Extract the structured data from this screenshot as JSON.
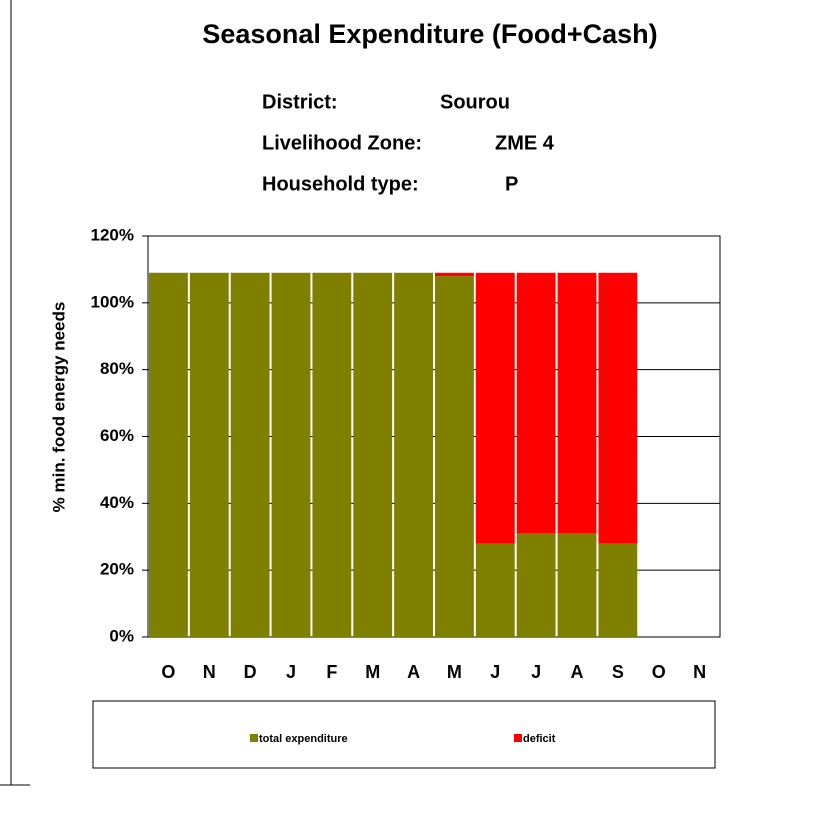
{
  "chart_data": {
    "type": "stacked_bar",
    "title": "Seasonal Expenditure (Food+Cash)",
    "info": [
      {
        "label": "District:",
        "value": "Sourou"
      },
      {
        "label": "Livelihood Zone:",
        "value": "ZME 4"
      },
      {
        "label": "Household type:",
        "value": "P"
      }
    ],
    "y_label": "% min. food energy needs",
    "categories": [
      "O",
      "N",
      "D",
      "J",
      "F",
      "M",
      "A",
      "M",
      "J",
      "J",
      "A",
      "S",
      "O",
      "N"
    ],
    "series": [
      {
        "name": "total expenditure",
        "color": "#808000",
        "values": [
          109,
          109,
          109,
          109,
          109,
          109,
          109,
          108,
          28,
          31,
          31,
          28,
          0,
          0
        ]
      },
      {
        "name": "deficit",
        "color": "#ff0000",
        "values": [
          0,
          0,
          0,
          0,
          0,
          0,
          0,
          1,
          81,
          78,
          78,
          81,
          0,
          0
        ]
      }
    ],
    "ylim": [
      0,
      120
    ],
    "yticks": [
      {
        "value": 0,
        "label": "0%"
      },
      {
        "value": 20,
        "label": "20%"
      },
      {
        "value": 40,
        "label": "40%"
      },
      {
        "value": 60,
        "label": "60%"
      },
      {
        "value": 80,
        "label": "80%"
      },
      {
        "value": 100,
        "label": "100%"
      },
      {
        "value": 120,
        "label": "120%"
      }
    ],
    "grid": true,
    "legend": "bottom"
  }
}
